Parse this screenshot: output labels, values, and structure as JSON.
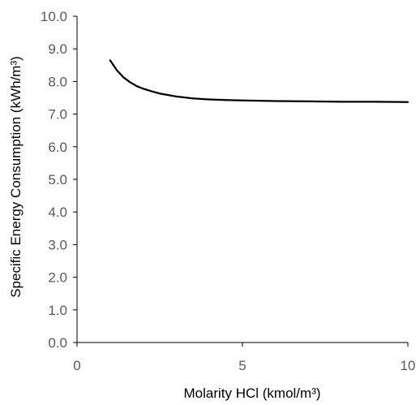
{
  "chart_data": {
    "type": "line",
    "title": "",
    "xlabel": "Molarity HCl (kmol/m³)",
    "ylabel": "Specific Energy Consumption (kWh/m³)",
    "xlim": [
      0,
      10
    ],
    "ylim": [
      0,
      10
    ],
    "x_ticks": [
      "0",
      "5",
      "10"
    ],
    "y_ticks": [
      "0.0",
      "1.0",
      "2.0",
      "3.0",
      "4.0",
      "5.0",
      "6.0",
      "7.0",
      "8.0",
      "9.0",
      "10.0"
    ],
    "grid": false,
    "legend": "none",
    "series": [
      {
        "color": "#000000",
        "x": [
          1.0,
          1.2,
          1.4,
          1.6,
          1.8,
          2.0,
          2.25,
          2.5,
          3.0,
          3.5,
          4.0,
          4.5,
          5.0,
          6.0,
          7.0,
          8.0,
          9.0,
          10.0
        ],
        "y": [
          8.65,
          8.35,
          8.13,
          7.98,
          7.86,
          7.78,
          7.7,
          7.63,
          7.54,
          7.48,
          7.45,
          7.43,
          7.42,
          7.4,
          7.39,
          7.38,
          7.38,
          7.37
        ]
      }
    ]
  }
}
